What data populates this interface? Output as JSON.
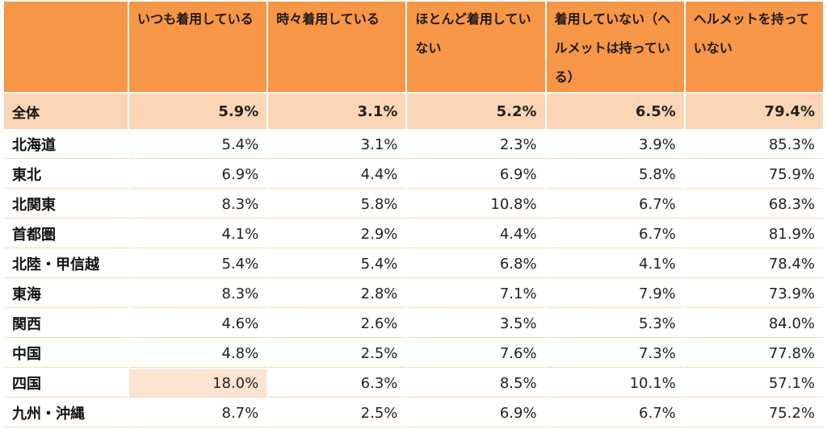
{
  "chart_data": {
    "type": "table",
    "columns": [
      "",
      "いつも着用している",
      "時々着用している",
      "ほとんど着用していない",
      "着用していない（ヘルメットは持っている）",
      "ヘルメットを持っていない"
    ],
    "total": {
      "label": "全体",
      "values": [
        "5.9%",
        "3.1%",
        "5.2%",
        "6.5%",
        "79.4%"
      ]
    },
    "rows": [
      {
        "label": "北海道",
        "values": [
          "5.4%",
          "3.1%",
          "2.3%",
          "3.9%",
          "85.3%"
        ]
      },
      {
        "label": "東北",
        "values": [
          "6.9%",
          "4.4%",
          "6.9%",
          "5.8%",
          "75.9%"
        ]
      },
      {
        "label": "北関東",
        "values": [
          "8.3%",
          "5.8%",
          "10.8%",
          "6.7%",
          "68.3%"
        ]
      },
      {
        "label": "首都圏",
        "values": [
          "4.1%",
          "2.9%",
          "4.4%",
          "6.7%",
          "81.9%"
        ]
      },
      {
        "label": "北陸・甲信越",
        "values": [
          "5.4%",
          "5.4%",
          "6.8%",
          "4.1%",
          "78.4%"
        ]
      },
      {
        "label": "東海",
        "values": [
          "8.3%",
          "2.8%",
          "7.1%",
          "7.9%",
          "73.9%"
        ]
      },
      {
        "label": "関西",
        "values": [
          "4.6%",
          "2.6%",
          "3.5%",
          "5.3%",
          "84.0%"
        ]
      },
      {
        "label": "中国",
        "values": [
          "4.8%",
          "2.5%",
          "7.6%",
          "7.3%",
          "77.8%"
        ]
      },
      {
        "label": "四国",
        "values": [
          "18.0%",
          "6.3%",
          "8.5%",
          "10.1%",
          "57.1%"
        ]
      },
      {
        "label": "九州・沖縄",
        "values": [
          "8.7%",
          "2.5%",
          "6.9%",
          "6.7%",
          "75.2%"
        ]
      }
    ],
    "highlight": {
      "row": 8,
      "col": 0
    },
    "colors": {
      "header": "#f79646",
      "total_row": "#fbd5b5",
      "highlight": "#fce4d0"
    }
  }
}
